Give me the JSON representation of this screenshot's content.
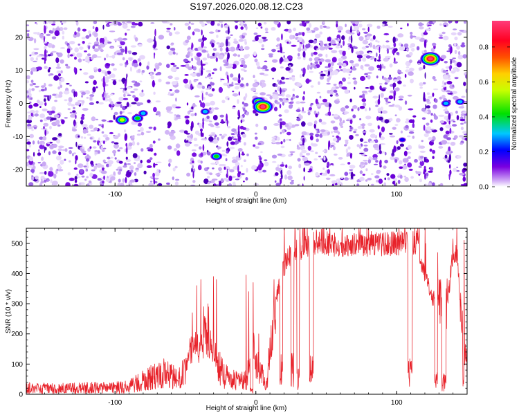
{
  "figure_title": "S197.2026.020.08.12.C23",
  "chart_data": [
    {
      "type": "heatmap",
      "title": "S197.2026.020.08.12.C23",
      "xlabel": "Height of straight line (km)",
      "ylabel": "Frequency (Hz)",
      "xlim": [
        -163,
        150
      ],
      "ylim": [
        -25,
        25
      ],
      "xticks": [
        -100,
        0,
        100
      ],
      "yticks": [
        -20,
        -10,
        0,
        10,
        20
      ],
      "colorbar": {
        "label": "Normalized spectral amplitude",
        "range": [
          0,
          0.95
        ],
        "ticks": [
          0.0,
          0.2,
          0.4,
          0.6,
          0.8
        ]
      },
      "gap_bands_km": [
        [
          -80,
          -77
        ],
        [
          -68,
          -63
        ],
        [
          -55,
          -50
        ],
        [
          -6,
          -2
        ],
        [
          8,
          12
        ],
        [
          27,
          29
        ],
        [
          104,
          105.5
        ],
        [
          112,
          115
        ],
        [
          128,
          131
        ]
      ],
      "hot_spots": [
        {
          "x": -95,
          "y": -5,
          "amp": 0.55
        },
        {
          "x": -84,
          "y": -4.5,
          "amp": 0.5
        },
        {
          "x": -80,
          "y": -3,
          "amp": 0.4
        },
        {
          "x": -36,
          "y": -2.5,
          "amp": 0.3
        },
        {
          "x": -28,
          "y": -16,
          "amp": 0.45
        },
        {
          "x": 2,
          "y": 0.5,
          "amp": 0.55
        },
        {
          "x": 5,
          "y": -1,
          "amp": 0.95
        },
        {
          "x": 104,
          "y": -11,
          "amp": 0.2
        },
        {
          "x": 124,
          "y": 13.5,
          "amp": 0.95
        },
        {
          "x": 135,
          "y": 0,
          "amp": 0.4
        },
        {
          "x": 145,
          "y": 0.5,
          "amp": 0.35
        }
      ]
    },
    {
      "type": "line",
      "xlabel": "Height of straight line (km)",
      "ylabel": "SNR (10 * v/v)",
      "xlim": [
        -163,
        150
      ],
      "ylim": [
        0,
        550
      ],
      "xticks": [
        -100,
        0,
        100
      ],
      "yticks": [
        0,
        100,
        200,
        300,
        400,
        500
      ],
      "color": "#e8222a",
      "series": [
        {
          "name": "SNR",
          "envelope": [
            [
              -163,
              20
            ],
            [
              -140,
              18
            ],
            [
              -120,
              20
            ],
            [
              -100,
              22
            ],
            [
              -90,
              25
            ],
            [
              -85,
              40
            ],
            [
              -80,
              45
            ],
            [
              -72,
              60
            ],
            [
              -65,
              70
            ],
            [
              -58,
              60
            ],
            [
              -52,
              70
            ],
            [
              -48,
              130
            ],
            [
              -44,
              160
            ],
            [
              -40,
              150
            ],
            [
              -36,
              200
            ],
            [
              -33,
              170
            ],
            [
              -30,
              150
            ],
            [
              -27,
              100
            ],
            [
              -24,
              70
            ],
            [
              -18,
              50
            ],
            [
              -12,
              40
            ],
            [
              -6,
              50
            ],
            [
              -3,
              200
            ],
            [
              0,
              100
            ],
            [
              4,
              60
            ],
            [
              8,
              40
            ],
            [
              10,
              140
            ],
            [
              14,
              300
            ],
            [
              18,
              390
            ],
            [
              22,
              450
            ],
            [
              30,
              480
            ],
            [
              40,
              500
            ],
            [
              60,
              495
            ],
            [
              80,
              495
            ],
            [
              100,
              500
            ],
            [
              110,
              500
            ],
            [
              115,
              505
            ],
            [
              118,
              420
            ],
            [
              122,
              380
            ],
            [
              125,
              320
            ],
            [
              130,
              290
            ],
            [
              135,
              260
            ],
            [
              140,
              470
            ],
            [
              143,
              460
            ],
            [
              146,
              230
            ],
            [
              150,
              80
            ]
          ],
          "dropouts": [
            [
              -4,
              -2,
              10
            ],
            [
              17,
              19,
              80
            ],
            [
              25,
              27,
              80
            ],
            [
              29,
              31,
              50
            ],
            [
              38,
              41,
              75
            ],
            [
              108,
              111,
              70
            ],
            [
              127,
              129,
              40
            ],
            [
              132,
              135,
              40
            ],
            [
              147,
              148,
              40
            ]
          ],
          "spikes": [
            [
              -45,
              270
            ],
            [
              -42,
              360
            ],
            [
              -39,
              380
            ],
            [
              -37,
              290
            ],
            [
              -34,
              300
            ],
            [
              -30,
              390
            ],
            [
              -28,
              380
            ],
            [
              -7,
              395
            ],
            [
              -5,
              340
            ],
            [
              -2,
              370
            ],
            [
              2,
              200
            ],
            [
              13,
              380
            ],
            [
              20,
              470
            ],
            [
              28,
              540
            ],
            [
              43,
              545
            ],
            [
              82,
              540
            ],
            [
              104,
              535
            ],
            [
              115,
              550
            ],
            [
              140,
              515
            ],
            [
              148,
              510
            ]
          ]
        }
      ]
    }
  ]
}
